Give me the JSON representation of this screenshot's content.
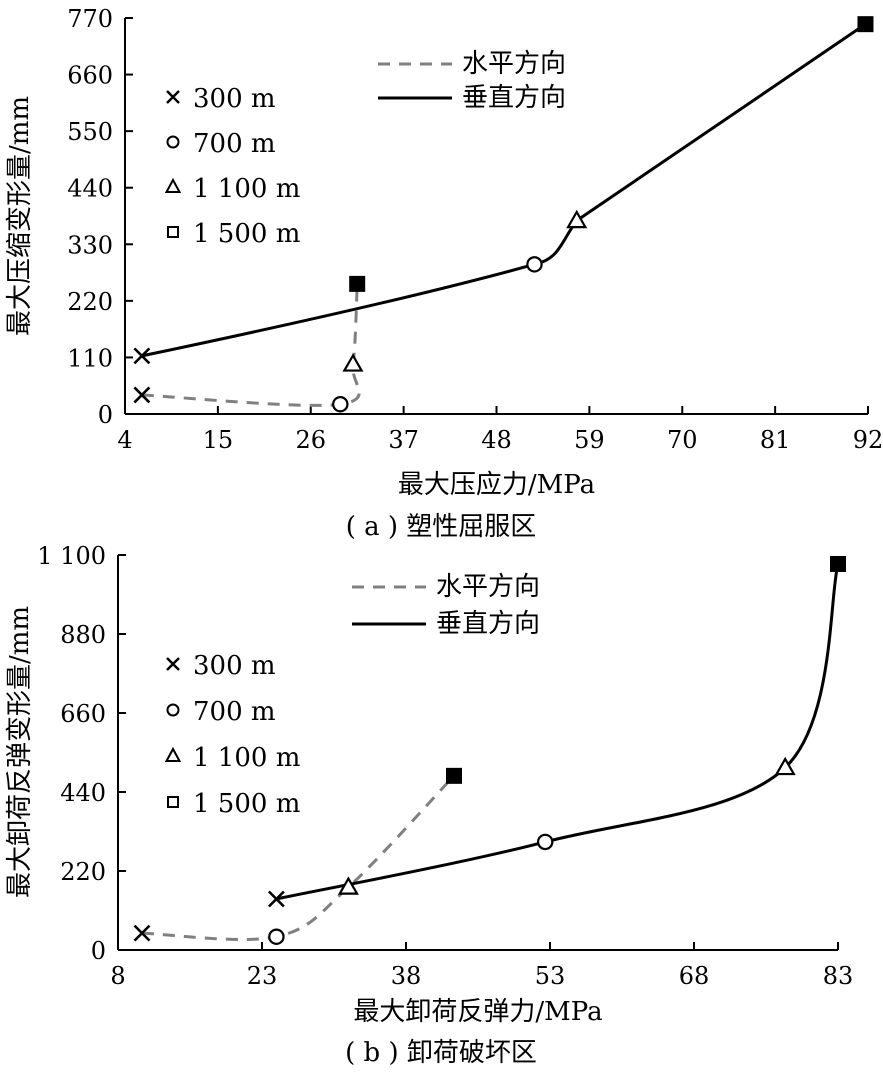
{
  "chart_data": [
    {
      "type": "line",
      "caption": "( a ) 塑性屈服区",
      "xlabel": "最大压应力/MPa",
      "ylabel": "最大压缩变形量/mm",
      "xlim": [
        4,
        92
      ],
      "ylim": [
        0,
        770
      ],
      "xticks": [
        4,
        15,
        26,
        37,
        48,
        59,
        70,
        81,
        92
      ],
      "yticks": [
        0,
        110,
        220,
        330,
        440,
        550,
        660,
        770
      ],
      "legend_series": [
        {
          "name": "水平方向",
          "style": "dashed",
          "color": "#808080"
        },
        {
          "name": "垂直方向",
          "style": "solid",
          "color": "#000000"
        }
      ],
      "legend_markers": [
        {
          "name": "300 m",
          "marker": "cross"
        },
        {
          "name": "700 m",
          "marker": "circle"
        },
        {
          "name": "1 100 m",
          "marker": "triangle"
        },
        {
          "name": "1 500 m",
          "marker": "square"
        }
      ],
      "series": [
        {
          "name": "水平方向",
          "points": [
            {
              "x": 6.0,
              "y": 37,
              "marker": "cross"
            },
            {
              "x": 29.5,
              "y": 19,
              "marker": "circle"
            },
            {
              "x": 31.0,
              "y": 97,
              "marker": "triangle"
            },
            {
              "x": 31.5,
              "y": 253,
              "marker": "square"
            }
          ]
        },
        {
          "name": "垂直方向",
          "points": [
            {
              "x": 6.0,
              "y": 113,
              "marker": "cross"
            },
            {
              "x": 52.5,
              "y": 291,
              "marker": "circle"
            },
            {
              "x": 57.5,
              "y": 376,
              "marker": "triangle"
            },
            {
              "x": 91.7,
              "y": 758,
              "marker": "square"
            }
          ]
        }
      ]
    },
    {
      "type": "line",
      "caption": "( b ) 卸荷破坏区",
      "xlabel": "最大卸荷反弹力/MPa",
      "ylabel": "最大卸荷反弹变形量/mm",
      "xlim": [
        8,
        83
      ],
      "ylim": [
        0,
        1100
      ],
      "xticks": [
        8,
        23,
        38,
        53,
        68,
        83
      ],
      "yticks": [
        0,
        220,
        440,
        660,
        880,
        1100
      ],
      "ytick_labels": [
        "0",
        "220",
        "440",
        "660",
        "880",
        "1 100"
      ],
      "legend_series": [
        {
          "name": "水平方向",
          "style": "dashed",
          "color": "#808080"
        },
        {
          "name": "垂直方向",
          "style": "solid",
          "color": "#000000"
        }
      ],
      "legend_markers": [
        {
          "name": "300 m",
          "marker": "cross"
        },
        {
          "name": "700 m",
          "marker": "circle"
        },
        {
          "name": "1 100 m",
          "marker": "triangle"
        },
        {
          "name": "1 500 m",
          "marker": "square"
        }
      ],
      "series": [
        {
          "name": "水平方向",
          "points": [
            {
              "x": 10.5,
              "y": 47,
              "marker": "cross"
            },
            {
              "x": 24.5,
              "y": 37,
              "marker": "circle"
            },
            {
              "x": 32.0,
              "y": 175,
              "marker": "triangle"
            },
            {
              "x": 43.0,
              "y": 485,
              "marker": "square"
            }
          ]
        },
        {
          "name": "垂直方向",
          "points": [
            {
              "x": 24.5,
              "y": 142,
              "marker": "cross"
            },
            {
              "x": 52.5,
              "y": 301,
              "marker": "circle"
            },
            {
              "x": 77.5,
              "y": 508,
              "marker": "triangle"
            },
            {
              "x": 83.0,
              "y": 1075,
              "marker": "square"
            }
          ]
        }
      ]
    }
  ]
}
